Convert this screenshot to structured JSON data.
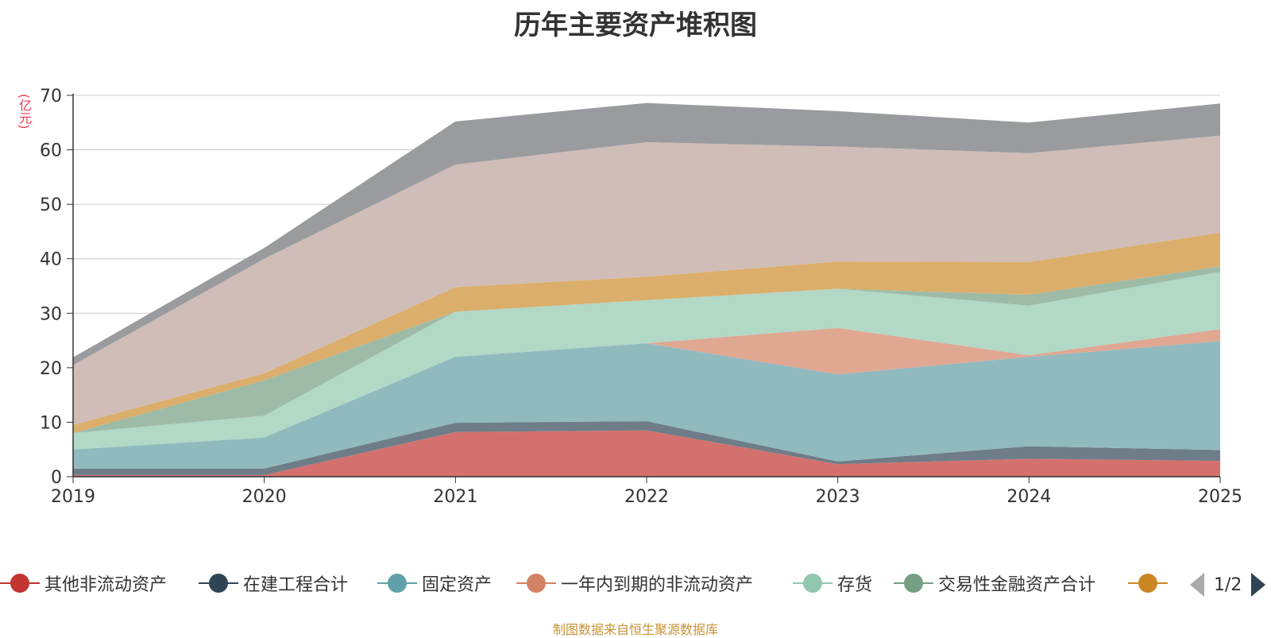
{
  "title": "历年主要资产堆积图",
  "y_unit": "(亿元)",
  "footer": "制图数据来自恒生聚源数据库",
  "pager": {
    "text": "1/2"
  },
  "chart_data": {
    "type": "area",
    "stacked": true,
    "title": "历年主要资产堆积图",
    "ylabel": "(亿元)",
    "ylim": [
      0,
      70
    ],
    "yticks": [
      0,
      10,
      20,
      30,
      40,
      50,
      60,
      70
    ],
    "grid": true,
    "legend_position": "bottom",
    "x": [
      "2019",
      "2020",
      "2021",
      "2022",
      "2023",
      "2024",
      "2025"
    ],
    "series": [
      {
        "name": "其他非流动资产",
        "color": "#c23531",
        "legend_color": "#c23531",
        "fill": "#d4716e",
        "values": [
          0.3,
          0.3,
          8.2,
          8.5,
          2.3,
          3.3,
          2.9
        ]
      },
      {
        "name": "在建工程合计",
        "color": "#2f4554",
        "legend_color": "#2f4554",
        "fill": "#6e7d88",
        "values": [
          1.2,
          1.2,
          1.7,
          1.7,
          0.5,
          2.3,
          2.0
        ]
      },
      {
        "name": "固定资产",
        "color": "#61a0a8",
        "legend_color": "#61a0a8",
        "fill": "#91babf",
        "values": [
          3.5,
          5.7,
          12.1,
          14.3,
          16.0,
          16.4,
          20.0
        ]
      },
      {
        "name": "一年内到期的非流动资产",
        "color": "#d48265",
        "legend_color": "#d48265",
        "fill": "#e0a792",
        "values": [
          0,
          0,
          0,
          0,
          8.5,
          0.3,
          2.2
        ]
      },
      {
        "name": "存货",
        "color": "#91c7ae",
        "legend_color": "#91c7ae",
        "fill": "#b2d8c6",
        "values": [
          3.0,
          4.0,
          8.3,
          7.9,
          7.2,
          9.1,
          10.5
        ]
      },
      {
        "name": "交易性金融资产合计",
        "color": "#749f83",
        "legend_color": "#749f83",
        "fill": "#9ebba8",
        "values": [
          0,
          6.5,
          0,
          0,
          0,
          2.0,
          1.0
        ]
      },
      {
        "color": "#ca8622",
        "legend_color": "#ca8622",
        "fill": "#dbae6b",
        "values": [
          1.5,
          1.3,
          4.5,
          4.3,
          5.0,
          6.0,
          6.2
        ]
      },
      {
        "color": "#bda29a",
        "legend_color": "#bda29a",
        "fill": "#d0bdb7",
        "values": [
          11.0,
          21.0,
          22.5,
          24.7,
          21.1,
          20.0,
          17.8
        ]
      },
      {
        "color": "#6e7074",
        "legend_color": "#6e7074",
        "fill": "#9a9b9e",
        "values": [
          1.4,
          2.0,
          7.9,
          7.2,
          6.5,
          5.6,
          5.9
        ]
      }
    ]
  }
}
